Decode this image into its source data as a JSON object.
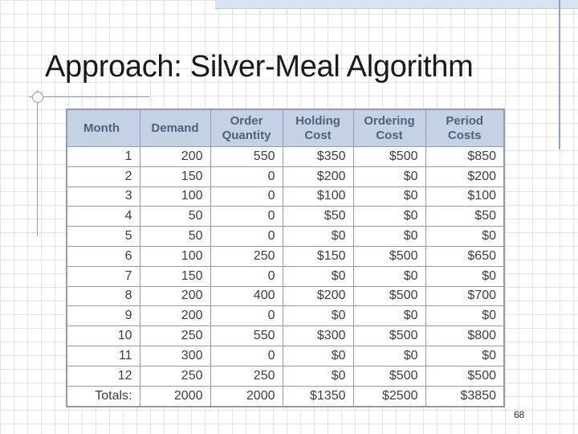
{
  "slide": {
    "title": "Approach: Silver-Meal Algorithm",
    "page_number": "68"
  },
  "table": {
    "headers": [
      "Month",
      "Demand",
      "Order\nQuantity",
      "Holding\nCost",
      "Ordering\nCost",
      "Period\nCosts"
    ],
    "rows": [
      [
        "1",
        "200",
        "550",
        "$350",
        "$500",
        "$850"
      ],
      [
        "2",
        "150",
        "0",
        "$200",
        "$0",
        "$200"
      ],
      [
        "3",
        "100",
        "0",
        "$100",
        "$0",
        "$100"
      ],
      [
        "4",
        "50",
        "0",
        "$50",
        "$0",
        "$50"
      ],
      [
        "5",
        "50",
        "0",
        "$0",
        "$0",
        "$0"
      ],
      [
        "6",
        "100",
        "250",
        "$150",
        "$500",
        "$650"
      ],
      [
        "7",
        "150",
        "0",
        "$0",
        "$0",
        "$0"
      ],
      [
        "8",
        "200",
        "400",
        "$200",
        "$500",
        "$700"
      ],
      [
        "9",
        "200",
        "0",
        "$0",
        "$0",
        "$0"
      ],
      [
        "10",
        "250",
        "550",
        "$300",
        "$500",
        "$800"
      ],
      [
        "11",
        "300",
        "0",
        "$0",
        "$0",
        "$0"
      ],
      [
        "12",
        "250",
        "250",
        "$0",
        "$500",
        "$500"
      ]
    ],
    "totals": [
      "Totals:",
      "2000",
      "2000",
      "$1350",
      "$2500",
      "$3850"
    ]
  }
}
